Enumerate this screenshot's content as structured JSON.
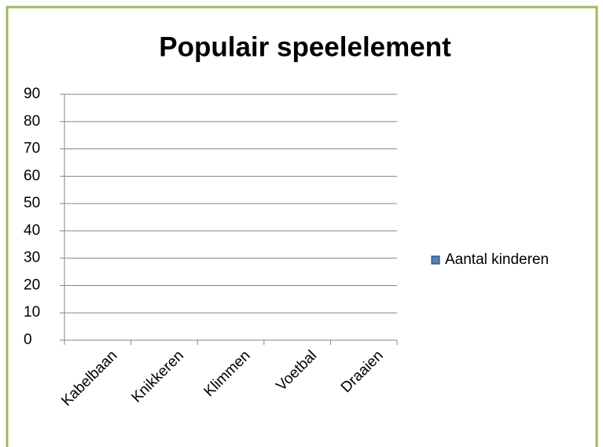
{
  "chart_data": {
    "type": "bar",
    "title": "Populair speelelement",
    "categories": [
      "Kabelbaan",
      "Knikkeren",
      "Klimmen",
      "Voetbal",
      "Draaien"
    ],
    "series": [
      {
        "name": "Aantal kinderen",
        "color": "#4f81bd",
        "values": [
          null,
          null,
          null,
          null,
          null
        ]
      }
    ],
    "ylim": [
      0,
      90
    ],
    "yticks": [
      0,
      10,
      20,
      30,
      40,
      50,
      60,
      70,
      80,
      90
    ],
    "grid": true,
    "legend": "right"
  }
}
